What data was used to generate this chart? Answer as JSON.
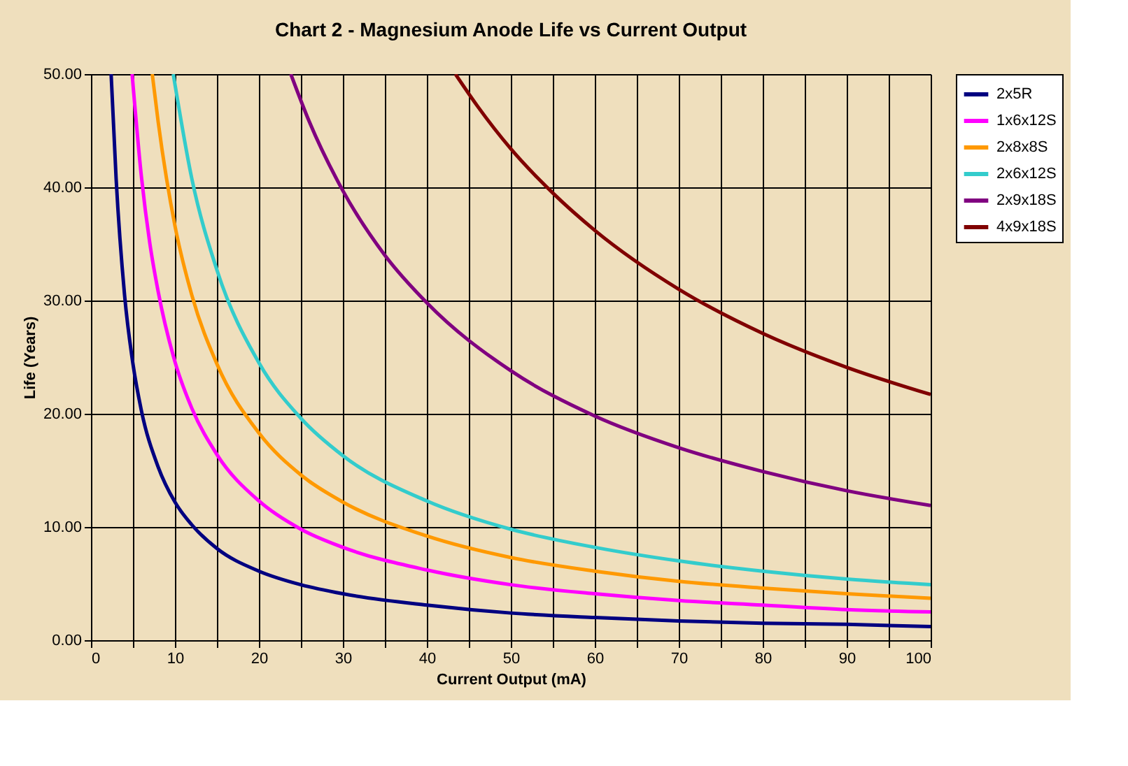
{
  "chart_data": {
    "type": "line",
    "title": "Chart 2 - Magnesium Anode Life vs Current Output",
    "xlabel": "Current Output (mA)",
    "ylabel": "Life (Years)",
    "xlim": [
      0,
      100
    ],
    "xticks": [
      0,
      {
        "value": 5,
        "label": null
      },
      10,
      {
        "value": 15,
        "label": null
      },
      20,
      {
        "value": 25,
        "label": null
      },
      30,
      {
        "value": 35,
        "label": null
      },
      40,
      {
        "value": 45,
        "label": null
      },
      50,
      {
        "value": 55,
        "label": null
      },
      60,
      {
        "value": 65,
        "label": null
      },
      70,
      {
        "value": 75,
        "label": null
      },
      80,
      {
        "value": 85,
        "label": null
      },
      90,
      {
        "value": 95,
        "label": null
      },
      100
    ],
    "ylim": [
      0,
      50
    ],
    "yticks": [
      {
        "value": 0,
        "label": "0.00"
      },
      {
        "value": 10,
        "label": "10.00"
      },
      {
        "value": 20,
        "label": "20.00"
      },
      {
        "value": 30,
        "label": "30.00"
      },
      {
        "value": 40,
        "label": "40.00"
      },
      {
        "value": 50,
        "label": "50.00"
      }
    ],
    "grid": true,
    "legend": "right",
    "marker": "none",
    "line_style": "solid",
    "series": [
      {
        "name": "2x5R",
        "color": "#000080",
        "x": [
          2.4,
          3,
          4,
          5,
          6,
          8,
          10,
          12,
          15,
          20,
          25,
          30,
          40,
          50,
          60,
          70,
          80,
          90,
          100
        ],
        "values": [
          50,
          40.7,
          30.5,
          24.4,
          20.3,
          15.3,
          12.2,
          10.2,
          8.1,
          6.1,
          4.9,
          4.1,
          3.1,
          2.4,
          2.0,
          1.7,
          1.5,
          1.4,
          1.2
        ]
      },
      {
        "name": "1x6x12S",
        "color": "#ff00ff",
        "x": [
          4.9,
          6,
          7,
          8,
          10,
          12,
          15,
          20,
          25,
          30,
          40,
          50,
          60,
          70,
          80,
          90,
          100
        ],
        "values": [
          50,
          41,
          35.1,
          30.8,
          24.6,
          20.5,
          16.4,
          12.3,
          9.8,
          8.2,
          6.2,
          4.9,
          4.1,
          3.5,
          3.1,
          2.7,
          2.5
        ]
      },
      {
        "name": "2x8x8S",
        "color": "#ff9900",
        "x": [
          7.3,
          8,
          10,
          12,
          15,
          20,
          25,
          30,
          40,
          50,
          60,
          70,
          80,
          90,
          100
        ],
        "values": [
          50,
          45.8,
          36.6,
          30.5,
          24.4,
          18.3,
          14.6,
          12.2,
          9.2,
          7.3,
          6.1,
          5.2,
          4.6,
          4.1,
          3.7
        ]
      },
      {
        "name": "2x6x12S",
        "color": "#33cccc",
        "x": [
          9.8,
          12,
          15,
          20,
          25,
          30,
          40,
          50,
          60,
          70,
          80,
          90,
          100
        ],
        "values": [
          50,
          40.8,
          32.7,
          24.5,
          19.6,
          16.3,
          12.3,
          9.8,
          8.2,
          7.0,
          6.1,
          5.4,
          4.9
        ]
      },
      {
        "name": "2x9x18S",
        "color": "#800080",
        "x": [
          23.8,
          26,
          30,
          35,
          40,
          50,
          60,
          70,
          80,
          90,
          100
        ],
        "values": [
          50,
          45.8,
          39.7,
          34,
          29.8,
          23.8,
          19.8,
          17,
          14.9,
          13.2,
          11.9
        ]
      },
      {
        "name": "4x9x18S",
        "color": "#800000",
        "x": [
          43.4,
          46,
          50,
          55,
          60,
          70,
          80,
          90,
          100
        ],
        "values": [
          50,
          47.2,
          43.4,
          39.5,
          36.2,
          31,
          27.1,
          24.1,
          21.7
        ]
      }
    ]
  }
}
